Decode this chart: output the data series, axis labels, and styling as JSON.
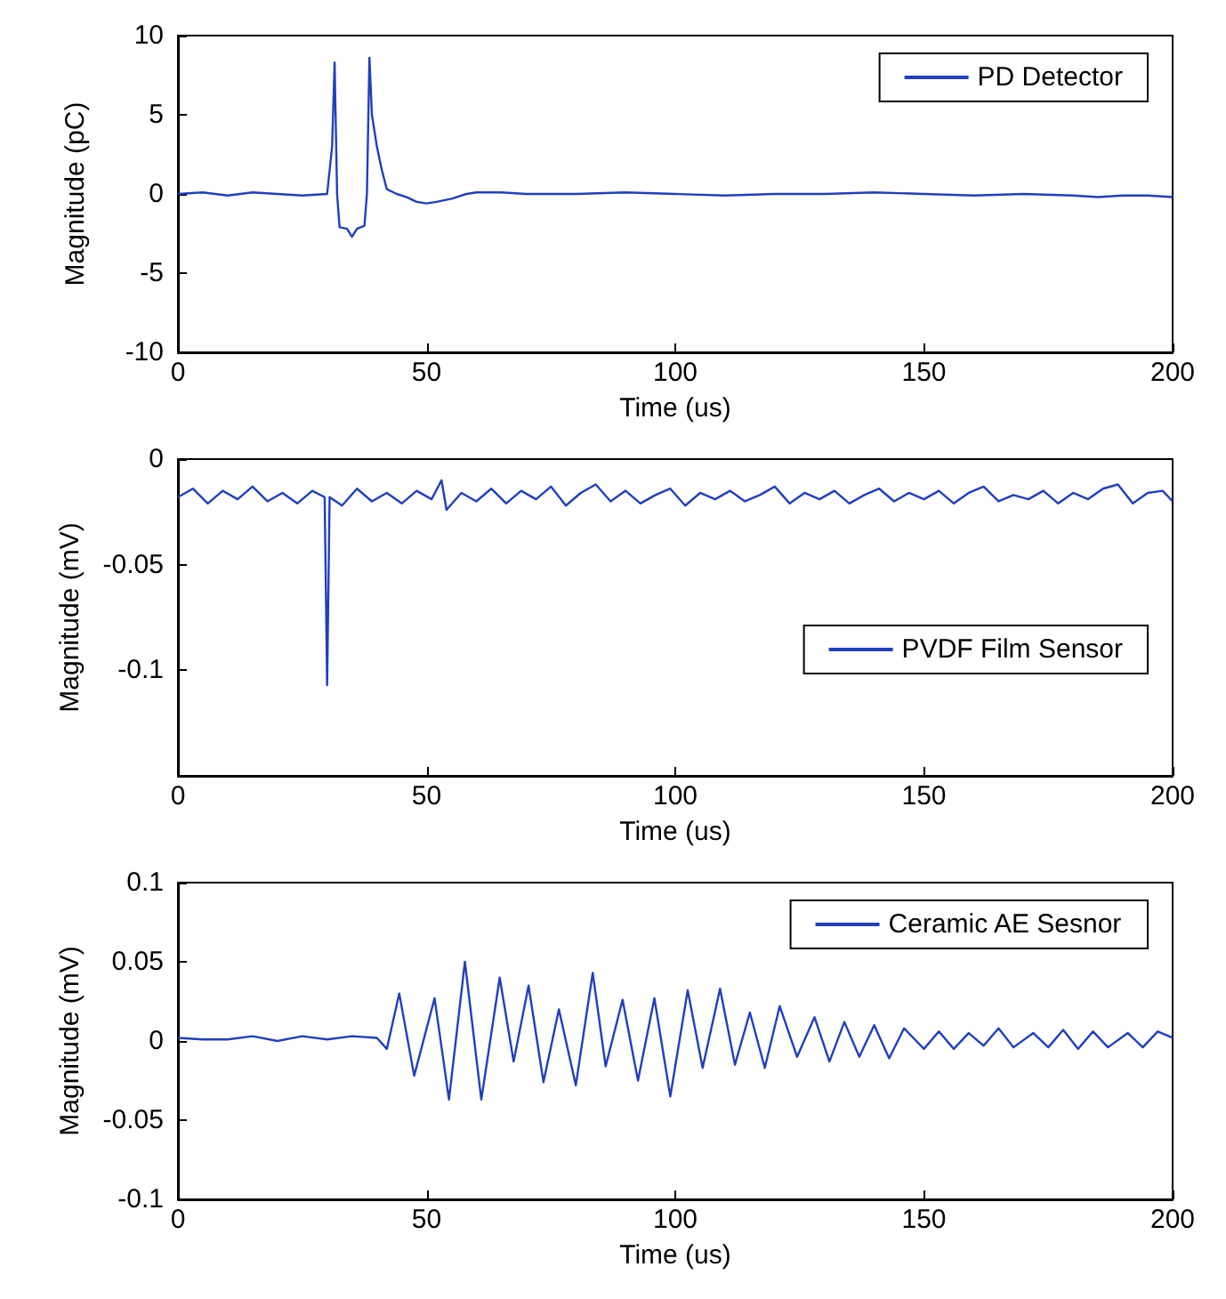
{
  "chart_data": [
    {
      "type": "line",
      "xlabel": "Time (us)",
      "ylabel": "Magnitude (pC)",
      "xlim": [
        0,
        200
      ],
      "xticks": [
        0,
        50,
        100,
        150,
        200
      ],
      "ylim": [
        -10,
        10
      ],
      "yticks": [
        -10,
        -5,
        0,
        5,
        10
      ],
      "grid": false,
      "legend": "top right",
      "marker": "none",
      "line_style": "solid",
      "series": [
        {
          "name": "PD Detector",
          "color": "#1f3fbf",
          "x": [
            0,
            5,
            10,
            15,
            20,
            25,
            30,
            31,
            31.5,
            32,
            32.5,
            34,
            35,
            36,
            37.5,
            38,
            38.5,
            39,
            40,
            41,
            42,
            44,
            46,
            48,
            50,
            52,
            55,
            58,
            60,
            65,
            70,
            80,
            90,
            100,
            110,
            120,
            130,
            140,
            150,
            160,
            170,
            180,
            185,
            190,
            195,
            200
          ],
          "values": [
            0,
            0.1,
            -0.1,
            0.1,
            0,
            -0.1,
            0,
            3,
            8.3,
            0,
            -2.1,
            -2.2,
            -2.7,
            -2.2,
            -2,
            0,
            8.6,
            5,
            3,
            1.5,
            0.3,
            0,
            -0.2,
            -0.5,
            -0.6,
            -0.5,
            -0.3,
            0,
            0.1,
            0.1,
            0,
            0,
            0.1,
            0,
            -0.1,
            0,
            0,
            0.1,
            0,
            -0.1,
            0,
            -0.1,
            -0.2,
            -0.1,
            -0.1,
            -0.2
          ]
        }
      ]
    },
    {
      "type": "line",
      "xlabel": "Time (us)",
      "ylabel": "Magnitude (mV)",
      "xlim": [
        0,
        200
      ],
      "xticks": [
        0,
        50,
        100,
        150,
        200
      ],
      "ylim": [
        -0.15,
        0
      ],
      "yticks": [
        -0.1,
        -0.05,
        0
      ],
      "grid": false,
      "legend": "right",
      "marker": "none",
      "line_style": "solid",
      "series": [
        {
          "name": "PVDF Film Sensor",
          "color": "#1f3fbf",
          "x": [
            0,
            3,
            6,
            9,
            12,
            15,
            18,
            21,
            24,
            27,
            29.5,
            30,
            30.5,
            33,
            36,
            39,
            42,
            45,
            48,
            51,
            53,
            54,
            57,
            60,
            63,
            66,
            69,
            72,
            75,
            78,
            81,
            84,
            87,
            90,
            93,
            96,
            99,
            102,
            105,
            108,
            111,
            114,
            117,
            120,
            123,
            126,
            129,
            132,
            135,
            138,
            141,
            144,
            147,
            150,
            153,
            156,
            159,
            162,
            165,
            168,
            171,
            174,
            177,
            180,
            183,
            186,
            189,
            192,
            195,
            198,
            200
          ],
          "values": [
            -0.018,
            -0.014,
            -0.021,
            -0.015,
            -0.019,
            -0.013,
            -0.02,
            -0.016,
            -0.021,
            -0.015,
            -0.018,
            -0.107,
            -0.018,
            -0.022,
            -0.014,
            -0.02,
            -0.016,
            -0.021,
            -0.015,
            -0.019,
            -0.01,
            -0.024,
            -0.016,
            -0.02,
            -0.014,
            -0.021,
            -0.015,
            -0.019,
            -0.013,
            -0.022,
            -0.016,
            -0.012,
            -0.02,
            -0.015,
            -0.021,
            -0.017,
            -0.014,
            -0.022,
            -0.016,
            -0.019,
            -0.015,
            -0.02,
            -0.017,
            -0.013,
            -0.021,
            -0.016,
            -0.019,
            -0.015,
            -0.021,
            -0.017,
            -0.014,
            -0.02,
            -0.016,
            -0.019,
            -0.015,
            -0.021,
            -0.016,
            -0.013,
            -0.02,
            -0.017,
            -0.019,
            -0.015,
            -0.021,
            -0.016,
            -0.019,
            -0.014,
            -0.012,
            -0.021,
            -0.016,
            -0.015,
            -0.02
          ]
        }
      ]
    },
    {
      "type": "line",
      "xlabel": "Time (us)",
      "ylabel": "Magnitude (mV)",
      "xlim": [
        0,
        200
      ],
      "xticks": [
        0,
        50,
        100,
        150,
        200
      ],
      "ylim": [
        -0.1,
        0.1
      ],
      "yticks": [
        -0.1,
        -0.05,
        0,
        0.05,
        0.1
      ],
      "grid": false,
      "legend": "top right",
      "marker": "none",
      "line_style": "solid",
      "series": [
        {
          "name": "Ceramic AE Sesnor",
          "color": "#1f3fbf",
          "x": [
            0,
            5,
            10,
            15,
            20,
            25,
            30,
            35,
            40,
            42,
            44.5,
            47.5,
            51.6,
            54.5,
            57.7,
            61,
            64.7,
            67.5,
            70.5,
            73.5,
            76.6,
            80,
            83.4,
            86,
            89.4,
            92.5,
            95.8,
            99,
            102.5,
            105.5,
            109,
            112,
            115,
            118,
            121,
            124.5,
            128,
            131,
            134,
            137,
            140,
            143,
            146,
            150,
            153,
            156,
            159,
            162,
            165,
            168,
            172,
            175,
            178,
            181,
            184,
            187,
            191,
            194,
            197,
            200
          ],
          "values": [
            0.002,
            0.001,
            0.001,
            0.003,
            0,
            0.003,
            0.001,
            0.003,
            0.002,
            -0.005,
            0.03,
            -0.022,
            0.027,
            -0.037,
            0.05,
            -0.037,
            0.04,
            -0.013,
            0.035,
            -0.026,
            0.02,
            -0.028,
            0.043,
            -0.016,
            0.026,
            -0.025,
            0.027,
            -0.035,
            0.032,
            -0.017,
            0.033,
            -0.015,
            0.018,
            -0.017,
            0.022,
            -0.01,
            0.015,
            -0.013,
            0.012,
            -0.01,
            0.01,
            -0.011,
            0.008,
            -0.005,
            0.006,
            -0.005,
            0.005,
            -0.003,
            0.008,
            -0.004,
            0.005,
            -0.004,
            0.007,
            -0.005,
            0.006,
            -0.004,
            0.005,
            -0.004,
            0.006,
            0.002
          ]
        }
      ]
    }
  ]
}
